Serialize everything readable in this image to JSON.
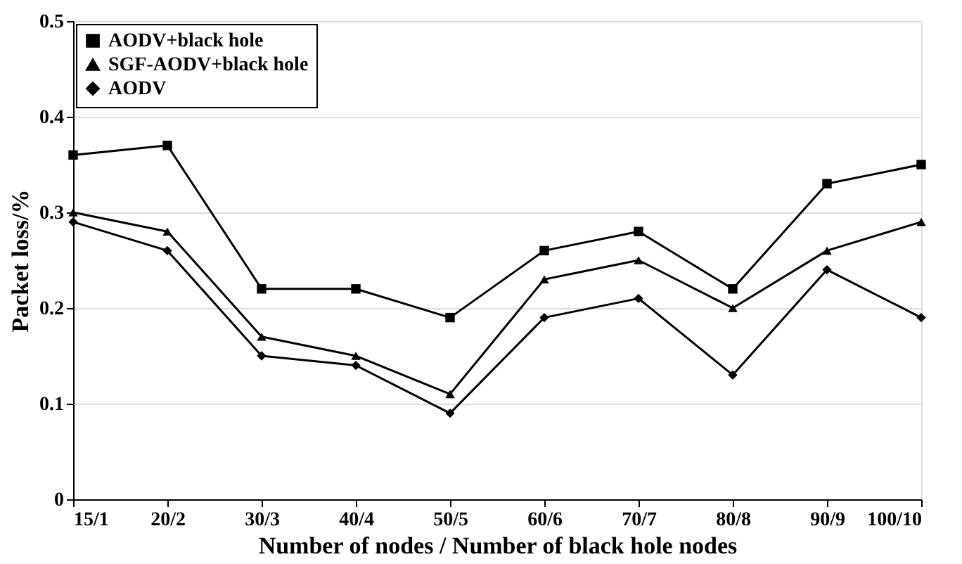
{
  "chart_data": {
    "type": "line",
    "xlabel": "Number of nodes / Number of black hole nodes",
    "ylabel": "Packet loss/%",
    "categories": [
      "15/1",
      "20/2",
      "30/3",
      "40/4",
      "50/5",
      "60/6",
      "70/7",
      "80/8",
      "90/9",
      "100/10"
    ],
    "series": [
      {
        "name": "AODV+black hole",
        "color": "#000000",
        "marker": "square",
        "values": [
          0.36,
          0.37,
          0.22,
          0.22,
          0.19,
          0.26,
          0.28,
          0.22,
          0.33,
          0.35
        ]
      },
      {
        "name": "SGF-AODV+black hole",
        "color": "#000000",
        "marker": "triangle",
        "values": [
          0.3,
          0.28,
          0.17,
          0.15,
          0.11,
          0.23,
          0.25,
          0.2,
          0.26,
          0.29
        ]
      },
      {
        "name": "AODV",
        "color": "#000000",
        "marker": "diamond",
        "values": [
          0.29,
          0.26,
          0.15,
          0.14,
          0.09,
          0.19,
          0.21,
          0.13,
          0.24,
          0.19
        ]
      }
    ],
    "ylim": [
      0,
      0.5
    ],
    "yticks": [
      0,
      0.1,
      0.2,
      0.3,
      0.4,
      0.5
    ],
    "grid": "y",
    "legend": "top left",
    "line_style": "solid"
  }
}
